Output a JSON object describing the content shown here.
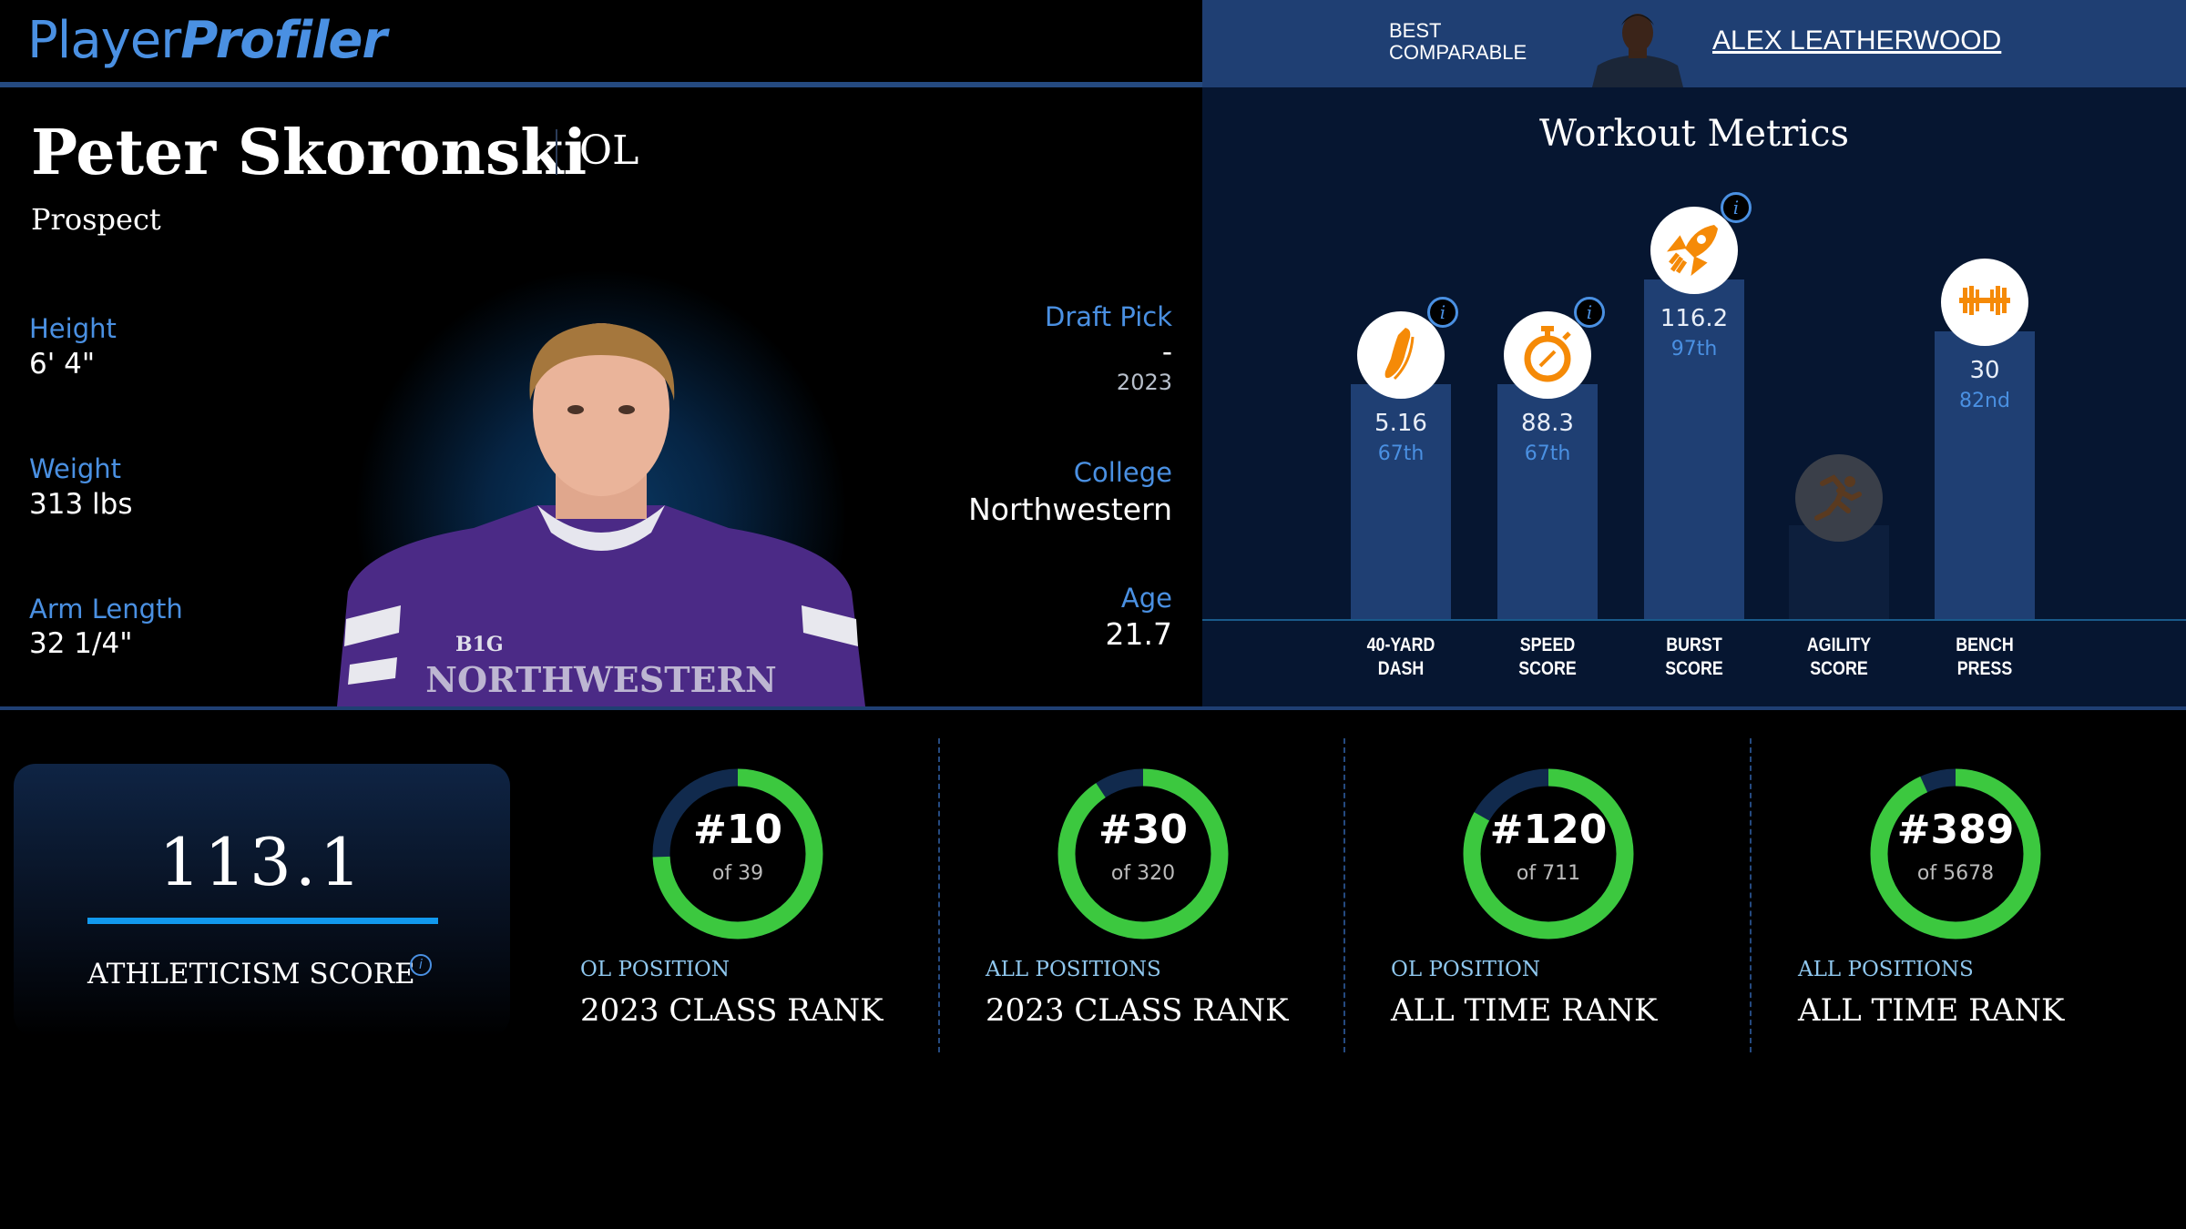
{
  "brand": {
    "part1": "Player",
    "part2": "Profiler"
  },
  "comparable": {
    "label_line1": "BEST",
    "label_line2": "COMPARABLE",
    "name": "ALEX LEATHERWOOD"
  },
  "player": {
    "name": "Peter Skoronski",
    "position": "OL",
    "status": "Prospect",
    "height_label": "Height",
    "height": "6' 4\"",
    "weight_label": "Weight",
    "weight": "313 lbs",
    "arm_label": "Arm Length",
    "arm": "32 1/4\"",
    "draft_label": "Draft Pick",
    "draft_pick": "-",
    "draft_year": "2023",
    "college_label": "College",
    "college": "Northwestern",
    "age_label": "Age",
    "age": "21.7",
    "jersey_text": "NORTHWESTERN",
    "jersey_patch": "B1G"
  },
  "workout": {
    "title": "Workout Metrics",
    "metrics": [
      {
        "label1": "40-YARD",
        "label2": "DASH",
        "value": "5.16",
        "pct_label": "67th",
        "percentile": 67,
        "icon": "shoe-icon",
        "info": true
      },
      {
        "label1": "SPEED",
        "label2": "SCORE",
        "value": "88.3",
        "pct_label": "67th",
        "percentile": 67,
        "icon": "stopwatch-icon",
        "info": true
      },
      {
        "label1": "BURST",
        "label2": "SCORE",
        "value": "116.2",
        "pct_label": "97th",
        "percentile": 97,
        "icon": "rocket-icon",
        "info": true
      },
      {
        "label1": "AGILITY",
        "label2": "SCORE",
        "value": null,
        "pct_label": null,
        "percentile": null,
        "icon": "runner-icon",
        "info": false
      },
      {
        "label1": "BENCH",
        "label2": "PRESS",
        "value": "30",
        "pct_label": "82nd",
        "percentile": 82,
        "icon": "barbell-icon",
        "info": false
      }
    ]
  },
  "athleticism": {
    "score": "113.1",
    "label": "ATHLETICISM SCORE",
    "info": "i"
  },
  "ranks": [
    {
      "rank": "#10",
      "rank_num": 10,
      "of": "of 39",
      "total": 39,
      "sub": "OL POSITION",
      "title": "2023 CLASS RANK"
    },
    {
      "rank": "#30",
      "rank_num": 30,
      "of": "of 320",
      "total": 320,
      "sub": "ALL POSITIONS",
      "title": "2023 CLASS RANK"
    },
    {
      "rank": "#120",
      "rank_num": 120,
      "of": "of 711",
      "total": 711,
      "sub": "OL POSITION",
      "title": "ALL TIME RANK"
    },
    {
      "rank": "#389",
      "rank_num": 389,
      "of": "of 5678",
      "total": 5678,
      "sub": "ALL POSITIONS",
      "title": "ALL TIME RANK"
    }
  ],
  "colors": {
    "accent": "#4a90e2",
    "bar": "#1f3f73",
    "ring": "#3cc83f",
    "ring_track": "#112a4d",
    "icon": "#f58a07"
  }
}
